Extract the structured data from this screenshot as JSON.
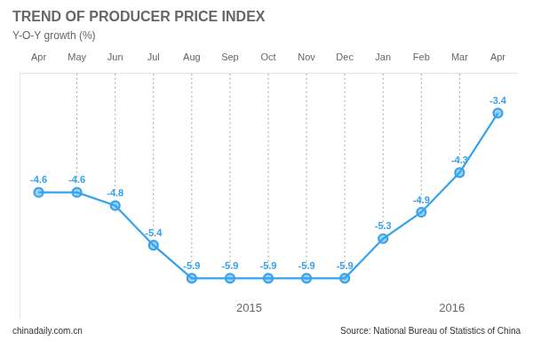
{
  "chart_data": {
    "type": "line",
    "title": "TREND OF PRODUCER PRICE INDEX",
    "subtitle": "Y-O-Y growth (%)",
    "categories": [
      "Apr",
      "May",
      "Jun",
      "Jul",
      "Aug",
      "Sep",
      "Oct",
      "Nov",
      "Dec",
      "Jan",
      "Feb",
      "Mar",
      "Apr"
    ],
    "values": [
      -4.6,
      -4.6,
      -4.8,
      -5.4,
      -5.9,
      -5.9,
      -5.9,
      -5.9,
      -5.9,
      -5.3,
      -4.9,
      -4.3,
      -3.4
    ],
    "ylim": [
      -6.5,
      -2.8
    ],
    "grid": false,
    "data_labels": true,
    "tick_labels": "x",
    "marker": "circle",
    "annotations": [
      "2015",
      "2016",
      "chinadaily.com.cn",
      "Source: National Bureau of Statistics of China"
    ]
  }
}
